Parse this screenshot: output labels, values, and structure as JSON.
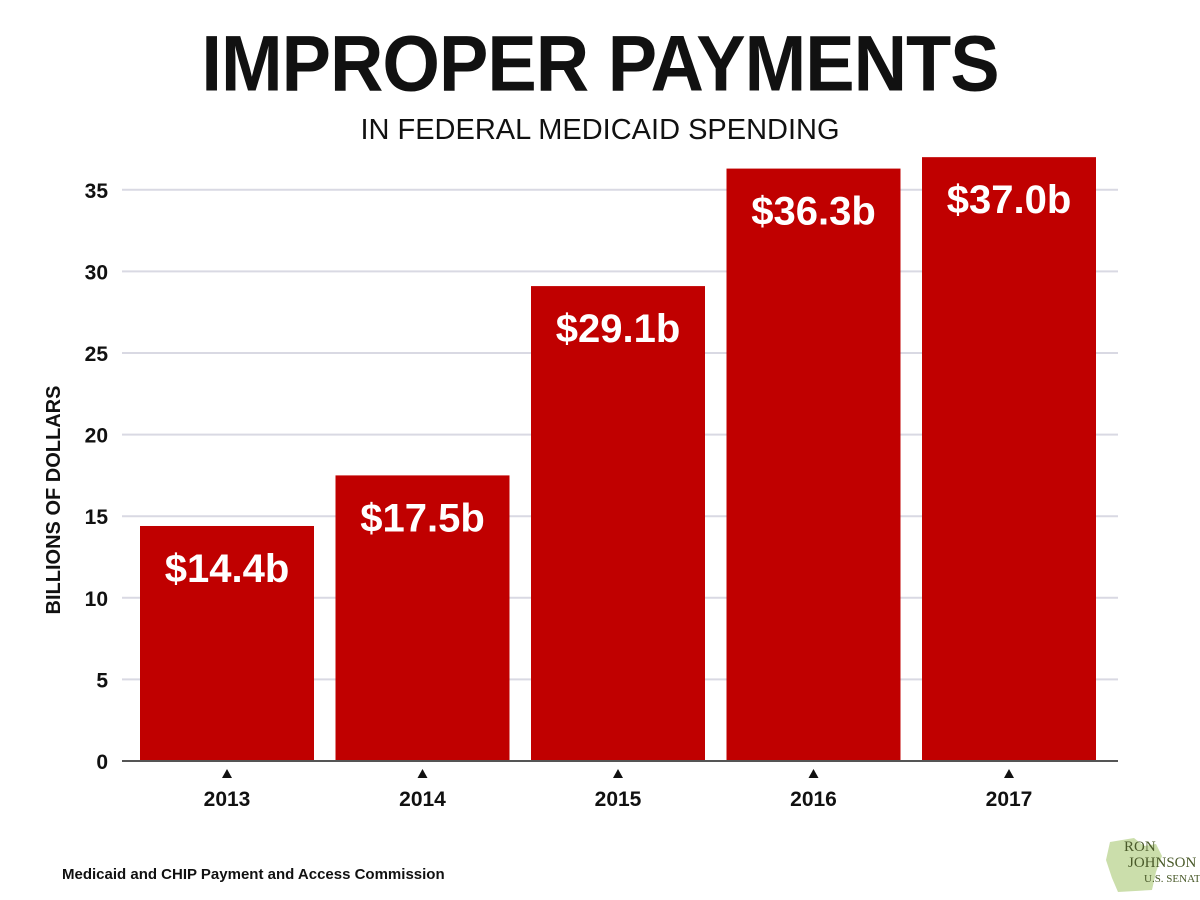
{
  "title": "IMPROPER PAYMENTS",
  "subtitle": "IN FEDERAL MEDICAID SPENDING",
  "source": "Medicaid and CHIP Payment and Access Commission",
  "logo": {
    "line1": "RON",
    "line2": "JOHNSON",
    "line3": "U.S. SENATE"
  },
  "colors": {
    "bar": "#c00000",
    "grid": "#d9d9e3",
    "axis": "#555555",
    "text": "#111111",
    "logo": "#4a5a2a",
    "logo_shape": "#b9d38f"
  },
  "chart_data": {
    "type": "bar",
    "title": "IMPROPER PAYMENTS",
    "subtitle": "IN FEDERAL MEDICAID SPENDING",
    "xlabel": "",
    "ylabel": "BILLIONS OF DOLLARS",
    "categories": [
      "2013",
      "2014",
      "2015",
      "2016",
      "2017"
    ],
    "values": [
      14.4,
      17.5,
      29.1,
      36.3,
      37.0
    ],
    "data_labels": [
      "$14.4b",
      "$17.5b",
      "$29.1b",
      "$36.3b",
      "$37.0b"
    ],
    "ylim": [
      0,
      37
    ],
    "yticks": [
      0,
      5,
      10,
      15,
      20,
      25,
      30,
      35
    ],
    "grid": true,
    "legend": "none"
  }
}
